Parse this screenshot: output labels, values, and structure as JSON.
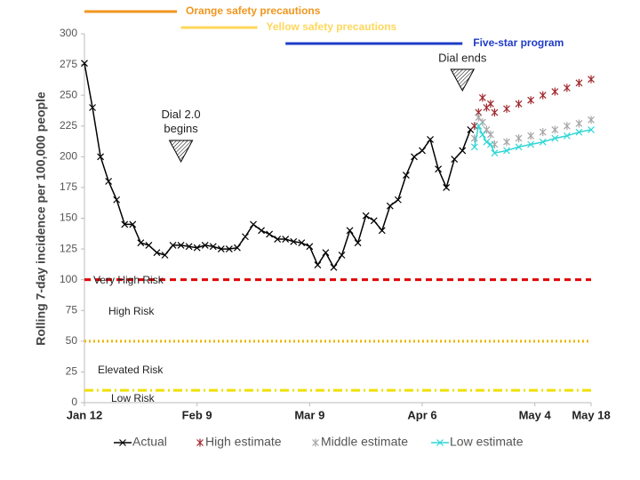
{
  "chart_data": {
    "type": "line",
    "y_label": "Rolling 7-day incidence per 100,000 people",
    "xlim": [
      0,
      126
    ],
    "xticks": [
      {
        "value": 0,
        "label": "Jan 12"
      },
      {
        "value": 28,
        "label": "Feb 9"
      },
      {
        "value": 56,
        "label": "Mar 9"
      },
      {
        "value": 84,
        "label": "Apr 6"
      },
      {
        "value": 112,
        "label": "May 4"
      },
      {
        "value": 126,
        "label": "May 18"
      }
    ],
    "ylim": [
      0,
      300
    ],
    "yticks": [
      0,
      25,
      50,
      75,
      100,
      125,
      150,
      175,
      200,
      225,
      250,
      275,
      300
    ],
    "series": [
      {
        "name": "Actual",
        "color": "#000000",
        "line": true,
        "marker": "x",
        "x": [
          0,
          2,
          4,
          6,
          8,
          10,
          12,
          14,
          16,
          18,
          20,
          22,
          24,
          26,
          28,
          30,
          32,
          34,
          36,
          38,
          40,
          42,
          44,
          46,
          48,
          50,
          52,
          54,
          56,
          58,
          60,
          62,
          64,
          66,
          68,
          70,
          72,
          74,
          76,
          78,
          80,
          82,
          84,
          86,
          88,
          90,
          92,
          94,
          96
        ],
        "values": [
          276,
          240,
          200,
          180,
          165,
          145,
          145,
          130,
          128,
          122,
          120,
          128,
          128,
          127,
          126,
          128,
          127,
          125,
          125,
          126,
          135,
          145,
          140,
          137,
          133,
          133,
          131,
          130,
          127,
          112,
          122,
          110,
          120,
          140,
          130,
          152,
          148,
          140,
          160,
          165,
          185,
          200,
          205,
          214,
          190,
          175,
          198,
          205,
          222
        ]
      },
      {
        "name": "High estimate",
        "color": "#a0282d",
        "line": false,
        "marker": "star",
        "x": [
          97,
          98,
          99,
          100,
          101,
          102,
          105,
          108,
          111,
          114,
          117,
          120,
          123,
          126
        ],
        "values": [
          225,
          236,
          248,
          240,
          243,
          236,
          239,
          243,
          246,
          250,
          253,
          256,
          260,
          263
        ]
      },
      {
        "name": "Middle estimate",
        "color": "#a6a6a6",
        "line": false,
        "marker": "star",
        "x": [
          97,
          98,
          99,
          100,
          101,
          102,
          105,
          108,
          111,
          114,
          117,
          120,
          123,
          126
        ],
        "values": [
          215,
          232,
          228,
          222,
          218,
          210,
          212,
          215,
          217,
          220,
          222,
          225,
          227,
          230
        ]
      },
      {
        "name": "Low estimate",
        "color": "#33d6d6",
        "line": true,
        "marker": "x",
        "x": [
          97,
          98,
          99,
          100,
          101,
          102,
          105,
          108,
          111,
          114,
          117,
          120,
          123,
          126
        ],
        "values": [
          208,
          225,
          218,
          212,
          210,
          203,
          205,
          208,
          210,
          212,
          215,
          217,
          220,
          222
        ]
      }
    ],
    "thresholds": [
      {
        "value": 100,
        "color": "#e00000",
        "dash": "7 5"
      },
      {
        "value": 50,
        "color": "#f0b400",
        "dash": "2 3"
      },
      {
        "value": 10,
        "color": "#f0e000",
        "dash": "10 4 2 4"
      }
    ],
    "zones": [
      "Very High Risk",
      "High Risk",
      "Elevated Risk",
      "Low Risk"
    ],
    "periods": [
      {
        "label": "Orange safety precautions",
        "start": 0,
        "end": 23,
        "color": "#f0961e"
      },
      {
        "label": "Yellow safety precautions",
        "start": 24,
        "end": 43,
        "color": "#ffd75a"
      },
      {
        "label": "Five-star program",
        "start": 50,
        "end": 94,
        "color": "#1e3cc8"
      }
    ],
    "events": [
      {
        "label": "Dial 2.0 begins",
        "x": 24
      },
      {
        "label": "Dial ends",
        "x": 94
      }
    ],
    "legend": "bottom"
  }
}
